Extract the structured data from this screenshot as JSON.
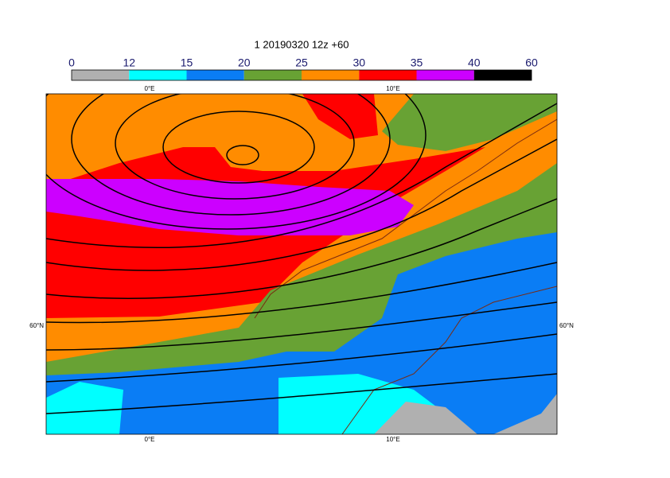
{
  "title": "1 20190320 12z +60",
  "colorbar": {
    "levels": [
      0,
      12,
      15,
      20,
      25,
      30,
      35,
      40,
      60
    ],
    "colors": [
      "#b0b0b0",
      "#00ffff",
      "#0a7df5",
      "#68a234",
      "#ff8c00",
      "#ff0000",
      "#cc00ff",
      "#000000"
    ]
  },
  "axes": {
    "lon_labels": [
      "0°E",
      "10°E"
    ],
    "lat_labels": [
      "60°N"
    ]
  }
}
